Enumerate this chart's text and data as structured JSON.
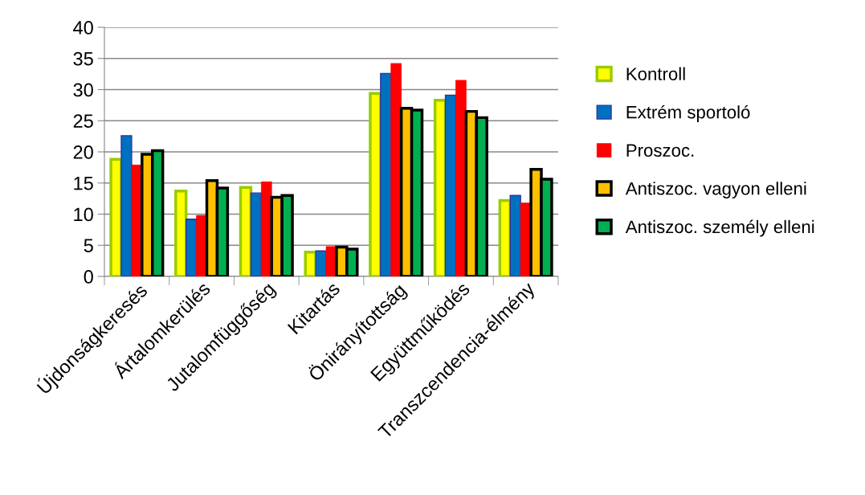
{
  "chart_data": {
    "type": "bar",
    "categories": [
      "Újdonságkeresés",
      "Ártalomkerülés",
      "Jutalomfüggőség",
      "Kitartás",
      "Önirányítottság",
      "Együttműködés",
      "Transzcendencia-élmény"
    ],
    "series": [
      {
        "name": "Kontroll",
        "color": "#ffff00",
        "values": [
          18.8,
          13.7,
          14.3,
          3.9,
          29.4,
          28.3,
          12.2
        ]
      },
      {
        "name": "Extrém sportoló",
        "color": "#0070c0",
        "values": [
          22.6,
          9.2,
          13.4,
          4.1,
          32.6,
          29.1,
          13.0
        ]
      },
      {
        "name": "Proszoc.",
        "color": "#ff0000",
        "values": [
          17.9,
          9.8,
          15.2,
          4.8,
          34.2,
          31.5,
          11.8
        ]
      },
      {
        "name": "Antiszoc. vagyon elleni",
        "color": "#ffc000",
        "values": [
          19.6,
          15.4,
          12.7,
          4.7,
          27.0,
          26.5,
          17.2
        ]
      },
      {
        "name": "Antiszoc. személy elleni",
        "color": "#00b050",
        "values": [
          20.2,
          14.2,
          13.0,
          4.4,
          26.7,
          25.5,
          15.6
        ]
      }
    ],
    "ylim": [
      0,
      40
    ],
    "yticks": [
      0,
      5,
      10,
      15,
      20,
      25,
      30,
      35,
      40
    ],
    "grid": "y",
    "legend": "right"
  }
}
